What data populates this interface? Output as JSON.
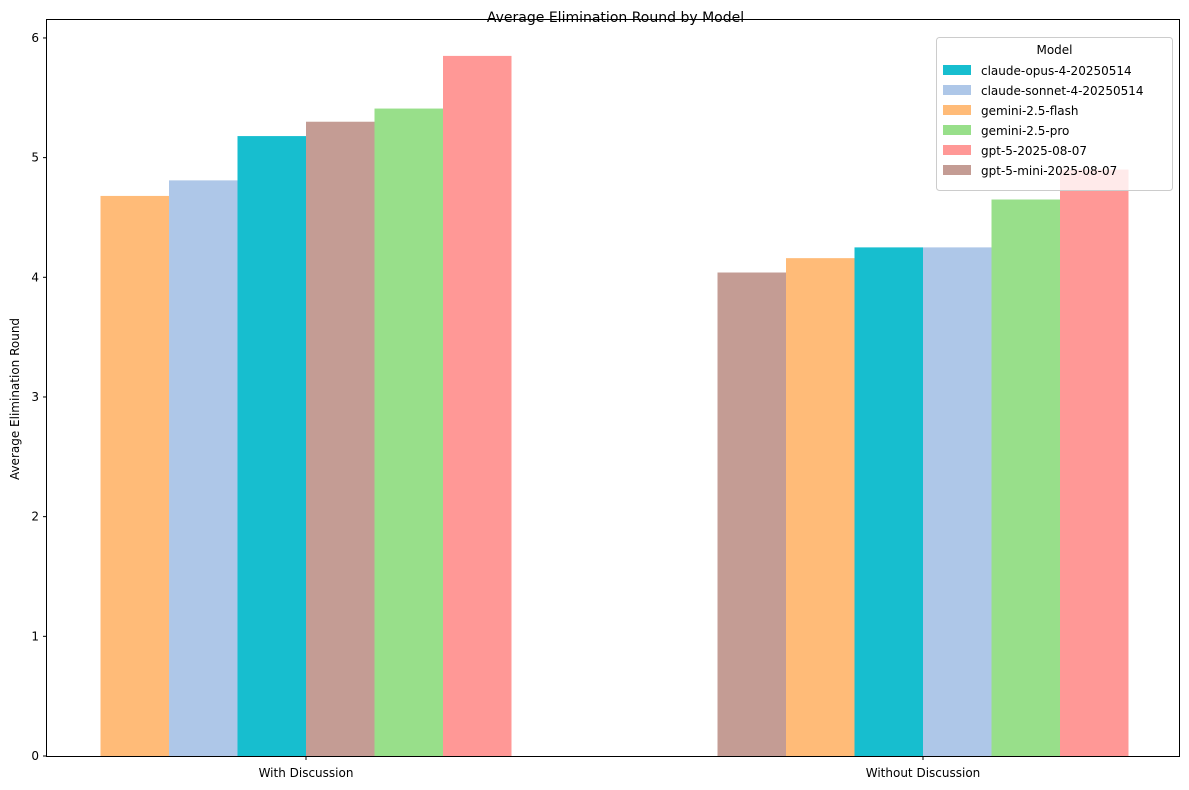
{
  "chart_data": {
    "type": "bar",
    "title": "Average Elimination Round by Model",
    "xlabel": "",
    "ylabel": "Average Elimination Round",
    "ylim": [
      0,
      6.15
    ],
    "yticks": [
      0,
      1,
      2,
      3,
      4,
      5,
      6
    ],
    "grid": false,
    "legend": {
      "title": "Model",
      "placement": "top-right",
      "entries": [
        {
          "name": "claude-opus-4-20250514",
          "color": "#17becf"
        },
        {
          "name": "claude-sonnet-4-20250514",
          "color": "#aec7e8"
        },
        {
          "name": "gemini-2.5-flash",
          "color": "#ffbb78"
        },
        {
          "name": "gemini-2.5-pro",
          "color": "#98df8a"
        },
        {
          "name": "gpt-5-2025-08-07",
          "color": "#ff9896"
        },
        {
          "name": "gpt-5-mini-2025-08-07",
          "color": "#c49c94"
        }
      ]
    },
    "categories": [
      "With Discussion",
      "Without Discussion"
    ],
    "groups": [
      {
        "category": "With Discussion",
        "bars": [
          {
            "model": "gemini-2.5-flash",
            "value": 4.68
          },
          {
            "model": "claude-sonnet-4-20250514",
            "value": 4.81
          },
          {
            "model": "claude-opus-4-20250514",
            "value": 5.18
          },
          {
            "model": "gpt-5-mini-2025-08-07",
            "value": 5.3
          },
          {
            "model": "gemini-2.5-pro",
            "value": 5.41
          },
          {
            "model": "gpt-5-2025-08-07",
            "value": 5.85
          }
        ]
      },
      {
        "category": "Without Discussion",
        "bars": [
          {
            "model": "gpt-5-mini-2025-08-07",
            "value": 4.04
          },
          {
            "model": "gemini-2.5-flash",
            "value": 4.16
          },
          {
            "model": "claude-opus-4-20250514",
            "value": 4.25
          },
          {
            "model": "claude-sonnet-4-20250514",
            "value": 4.25
          },
          {
            "model": "gemini-2.5-pro",
            "value": 4.65
          },
          {
            "model": "gpt-5-2025-08-07",
            "value": 4.9
          }
        ]
      }
    ]
  }
}
